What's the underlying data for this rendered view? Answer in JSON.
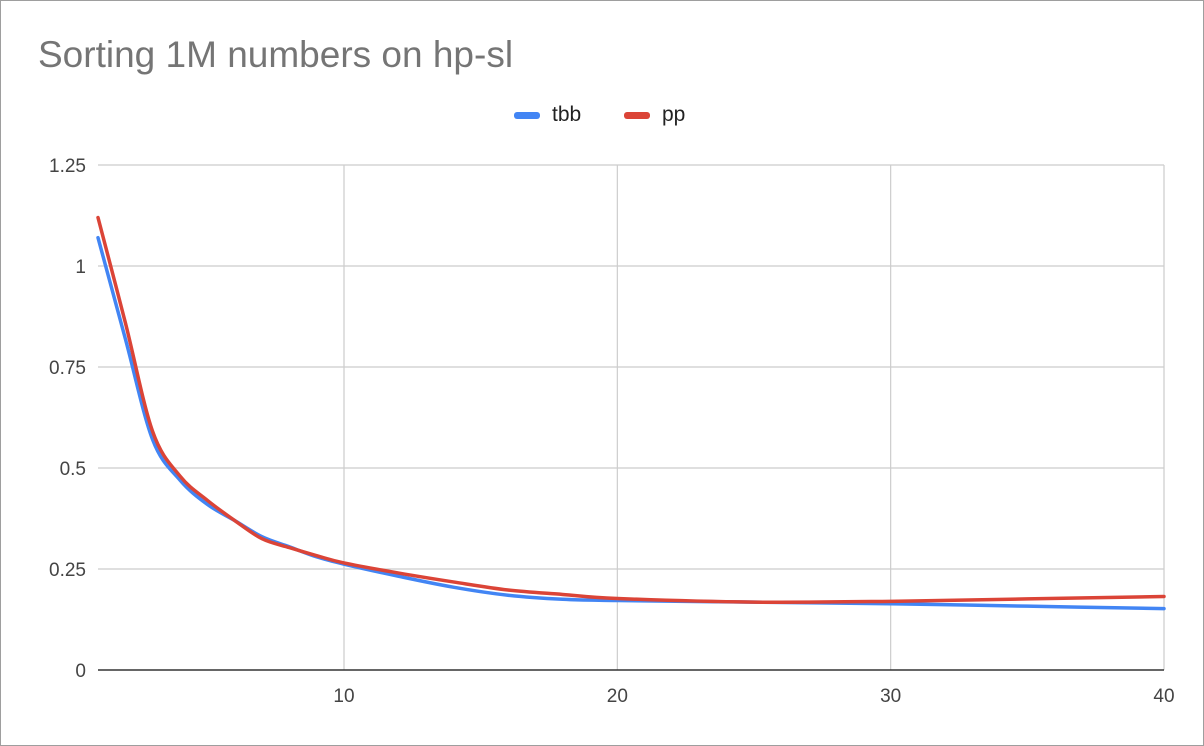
{
  "chart_data": {
    "type": "line",
    "title": "Sorting 1M numbers on hp-sl",
    "xlabel": "",
    "ylabel": "",
    "xlim": [
      1,
      40
    ],
    "ylim": [
      0,
      1.25
    ],
    "x_ticks": [
      10,
      20,
      30,
      40
    ],
    "y_ticks": [
      0,
      0.25,
      0.5,
      0.75,
      1,
      1.25
    ],
    "x_tick_labels": [
      "10",
      "20",
      "30",
      "40"
    ],
    "y_tick_labels": [
      "0",
      "0.25",
      "0.5",
      "0.75",
      "1",
      "1.25"
    ],
    "grid": true,
    "legend_position": "top-center",
    "series": [
      {
        "name": "tbb",
        "color": "#4285f4",
        "x": [
          1,
          2,
          3,
          4,
          5,
          6,
          7,
          8,
          9,
          10,
          12,
          14,
          16,
          18,
          20,
          25,
          30,
          35,
          40
        ],
        "values": [
          1.07,
          0.82,
          0.57,
          0.47,
          0.41,
          0.37,
          0.33,
          0.305,
          0.28,
          0.262,
          0.232,
          0.205,
          0.185,
          0.175,
          0.172,
          0.168,
          0.164,
          0.158,
          0.152
        ]
      },
      {
        "name": "pp",
        "color": "#db4437",
        "x": [
          1,
          2,
          3,
          4,
          5,
          6,
          7,
          8,
          9,
          10,
          12,
          14,
          16,
          18,
          20,
          25,
          30,
          35,
          40
        ],
        "values": [
          1.12,
          0.86,
          0.59,
          0.48,
          0.42,
          0.37,
          0.325,
          0.303,
          0.283,
          0.265,
          0.24,
          0.218,
          0.198,
          0.187,
          0.177,
          0.168,
          0.17,
          0.176,
          0.182
        ]
      }
    ]
  }
}
